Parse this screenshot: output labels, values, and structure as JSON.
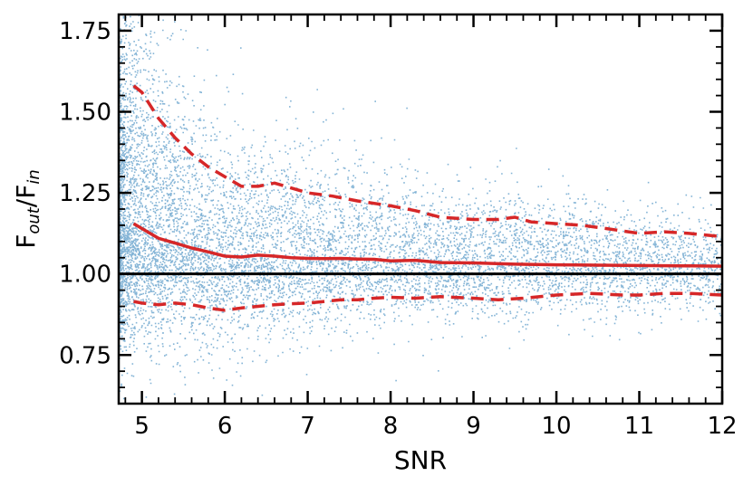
{
  "chart_data": {
    "type": "scatter",
    "title": "",
    "xlabel": "SNR",
    "ylabel_main": "F",
    "ylabel_sub1": "out",
    "ylabel_mid": "/F",
    "ylabel_sub2": "in",
    "xlim": [
      4.72,
      12.0
    ],
    "ylim": [
      0.6,
      1.8
    ],
    "xticks": [
      5,
      6,
      7,
      8,
      9,
      10,
      11,
      12
    ],
    "xtick_labels": [
      "5",
      "6",
      "7",
      "8",
      "9",
      "10",
      "11",
      "12"
    ],
    "yticks": [
      0.75,
      1.0,
      1.25,
      1.5,
      1.75
    ],
    "ytick_labels": [
      "0.75",
      "1.00",
      "1.25",
      "1.50",
      "1.75"
    ],
    "grid": false,
    "colors": {
      "points": "#1f77b4",
      "median_line": "#d62728",
      "reference_line": "#000000"
    },
    "reference_line": {
      "y": 1.0
    },
    "series": [
      {
        "style": "solid",
        "x": [
          4.9,
          5.0,
          5.2,
          5.4,
          5.6,
          5.8,
          6.0,
          6.2,
          6.4,
          6.6,
          6.8,
          7.0,
          7.2,
          7.4,
          7.6,
          7.8,
          8.0,
          8.3,
          8.6,
          9.0,
          9.5,
          10.0,
          10.5,
          11.0,
          11.5,
          12.0
        ],
        "y": [
          1.155,
          1.14,
          1.11,
          1.095,
          1.08,
          1.068,
          1.055,
          1.052,
          1.058,
          1.055,
          1.05,
          1.048,
          1.047,
          1.048,
          1.046,
          1.045,
          1.04,
          1.042,
          1.035,
          1.034,
          1.03,
          1.028,
          1.027,
          1.026,
          1.025,
          1.024
        ]
      },
      {
        "style": "dashed",
        "x": [
          4.9,
          5.0,
          5.2,
          5.4,
          5.6,
          5.8,
          6.0,
          6.2,
          6.4,
          6.6,
          6.8,
          7.0,
          7.3,
          7.6,
          8.0,
          8.3,
          8.6,
          9.0,
          9.3,
          9.5,
          9.7,
          10.0,
          10.3,
          10.6,
          11.0,
          11.3,
          11.6,
          12.0
        ],
        "y": [
          1.58,
          1.56,
          1.48,
          1.42,
          1.37,
          1.33,
          1.3,
          1.27,
          1.27,
          1.28,
          1.265,
          1.25,
          1.24,
          1.225,
          1.21,
          1.195,
          1.175,
          1.168,
          1.168,
          1.175,
          1.16,
          1.155,
          1.15,
          1.14,
          1.125,
          1.13,
          1.125,
          1.115
        ]
      },
      {
        "style": "dashed",
        "x": [
          4.9,
          5.0,
          5.2,
          5.4,
          5.6,
          5.8,
          6.0,
          6.2,
          6.4,
          6.6,
          6.8,
          7.0,
          7.2,
          7.4,
          7.6,
          7.8,
          8.0,
          8.3,
          8.6,
          9.0,
          9.3,
          9.6,
          10.0,
          10.4,
          10.8,
          11.0,
          11.3,
          11.6,
          12.0
        ],
        "y": [
          0.915,
          0.91,
          0.905,
          0.91,
          0.905,
          0.895,
          0.888,
          0.895,
          0.9,
          0.905,
          0.908,
          0.91,
          0.915,
          0.92,
          0.92,
          0.925,
          0.928,
          0.925,
          0.93,
          0.925,
          0.92,
          0.925,
          0.935,
          0.94,
          0.935,
          0.935,
          0.94,
          0.94,
          0.935
        ]
      }
    ]
  }
}
